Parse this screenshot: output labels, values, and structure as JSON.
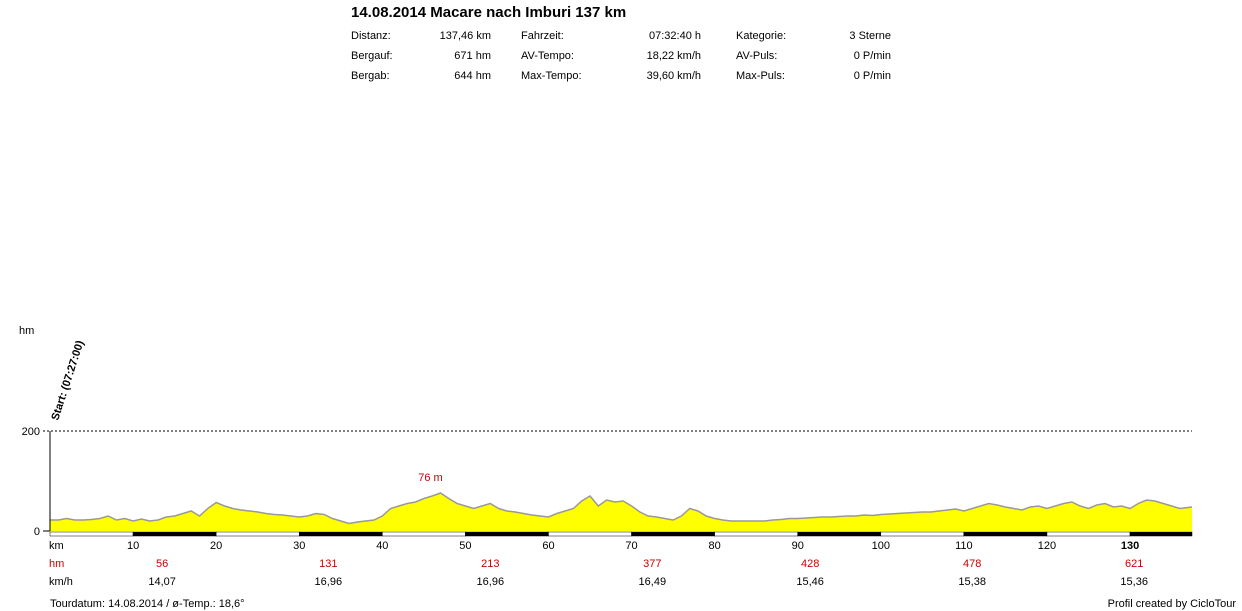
{
  "header": {
    "title": "14.08.2014 Macare nach Imburi 137 km",
    "rows": [
      {
        "l1": "Distanz:",
        "v1": "137,46 km",
        "l2": "Fahrzeit:",
        "v2": "07:32:40 h",
        "l3": "Kategorie:",
        "v3": "3 Sterne"
      },
      {
        "l1": "Bergauf:",
        "v1": "671 hm",
        "l2": "AV-Tempo:",
        "v2": "18,22 km/h",
        "l3": "AV-Puls:",
        "v3": "0 P/min"
      },
      {
        "l1": "Bergab:",
        "v1": "644 hm",
        "l2": "Max-Tempo:",
        "v2": "39,60 km/h",
        "l3": "Max-Puls:",
        "v3": "0 P/min"
      }
    ]
  },
  "chart_data": {
    "type": "area",
    "ylabel": "hm",
    "ylim": [
      0,
      200
    ],
    "xlim": [
      0,
      137.46
    ],
    "y_ticks": [
      0,
      200
    ],
    "x_tick_row_label": "km",
    "x_ticks": [
      10,
      20,
      30,
      40,
      50,
      60,
      70,
      80,
      90,
      100,
      110,
      120,
      130
    ],
    "start_label": "Start: (07:27:00)",
    "max_annotation": {
      "x": 47,
      "y": 76,
      "label": "76 m"
    },
    "fill_color": "#ffff00",
    "line_color": "#999999",
    "profile": {
      "x": [
        0,
        1,
        2,
        3,
        4,
        5,
        6,
        7,
        8,
        9,
        10,
        11,
        12,
        13,
        14,
        15,
        16,
        17,
        18,
        19,
        20,
        21,
        22,
        23,
        24,
        25,
        26,
        27,
        28,
        29,
        30,
        31,
        32,
        33,
        34,
        35,
        36,
        37,
        38,
        39,
        40,
        41,
        42,
        43,
        44,
        45,
        46,
        47,
        48,
        49,
        50,
        51,
        52,
        53,
        54,
        55,
        56,
        57,
        58,
        59,
        60,
        61,
        62,
        63,
        64,
        65,
        66,
        67,
        68,
        69,
        70,
        71,
        72,
        73,
        74,
        75,
        76,
        77,
        78,
        79,
        80,
        81,
        82,
        83,
        84,
        85,
        86,
        87,
        88,
        89,
        90,
        91,
        92,
        93,
        94,
        95,
        96,
        97,
        98,
        99,
        100,
        101,
        102,
        103,
        104,
        105,
        106,
        107,
        108,
        109,
        110,
        111,
        112,
        113,
        114,
        115,
        116,
        117,
        118,
        119,
        120,
        121,
        122,
        123,
        124,
        125,
        126,
        127,
        128,
        129,
        130,
        131,
        132,
        133,
        134,
        135,
        136,
        137.46
      ],
      "y": [
        22,
        22,
        25,
        22,
        22,
        23,
        25,
        30,
        22,
        25,
        20,
        24,
        20,
        22,
        28,
        30,
        35,
        40,
        30,
        45,
        57,
        50,
        45,
        42,
        40,
        38,
        35,
        33,
        32,
        30,
        28,
        30,
        35,
        33,
        25,
        20,
        15,
        18,
        20,
        22,
        30,
        45,
        50,
        55,
        58,
        65,
        70,
        76,
        65,
        55,
        50,
        45,
        50,
        55,
        45,
        40,
        38,
        35,
        32,
        30,
        28,
        35,
        40,
        45,
        60,
        70,
        50,
        62,
        58,
        60,
        50,
        38,
        30,
        28,
        25,
        22,
        30,
        45,
        40,
        30,
        25,
        22,
        20,
        20,
        20,
        20,
        20,
        22,
        23,
        25,
        25,
        26,
        27,
        28,
        28,
        29,
        30,
        30,
        32,
        31,
        33,
        34,
        35,
        36,
        37,
        38,
        38,
        40,
        42,
        44,
        40,
        45,
        50,
        55,
        52,
        48,
        45,
        42,
        48,
        50,
        45,
        50,
        55,
        58,
        50,
        45,
        52,
        55,
        48,
        50,
        45,
        55,
        62,
        60,
        55,
        50,
        45,
        48
      ]
    },
    "hm_row_label": "hm",
    "hm_row": [
      {
        "x": 13.5,
        "label": "56"
      },
      {
        "x": 33.5,
        "label": "131"
      },
      {
        "x": 53,
        "label": "213"
      },
      {
        "x": 72.5,
        "label": "377"
      },
      {
        "x": 91.5,
        "label": "428"
      },
      {
        "x": 111,
        "label": "478"
      },
      {
        "x": 130.5,
        "label": "621"
      }
    ],
    "kmh_row_label": "km/h",
    "kmh_row": [
      {
        "x": 13.5,
        "label": "14,07"
      },
      {
        "x": 33.5,
        "label": "16,96"
      },
      {
        "x": 53,
        "label": "16,96"
      },
      {
        "x": 72.5,
        "label": "16,49"
      },
      {
        "x": 91.5,
        "label": "15,46"
      },
      {
        "x": 111,
        "label": "15,38"
      },
      {
        "x": 130.5,
        "label": "15,36"
      }
    ]
  },
  "footer": {
    "left": "Tourdatum: 14.08.2014  /  ø-Temp.: 18,6°",
    "right": "Profil created by CicloTour"
  }
}
